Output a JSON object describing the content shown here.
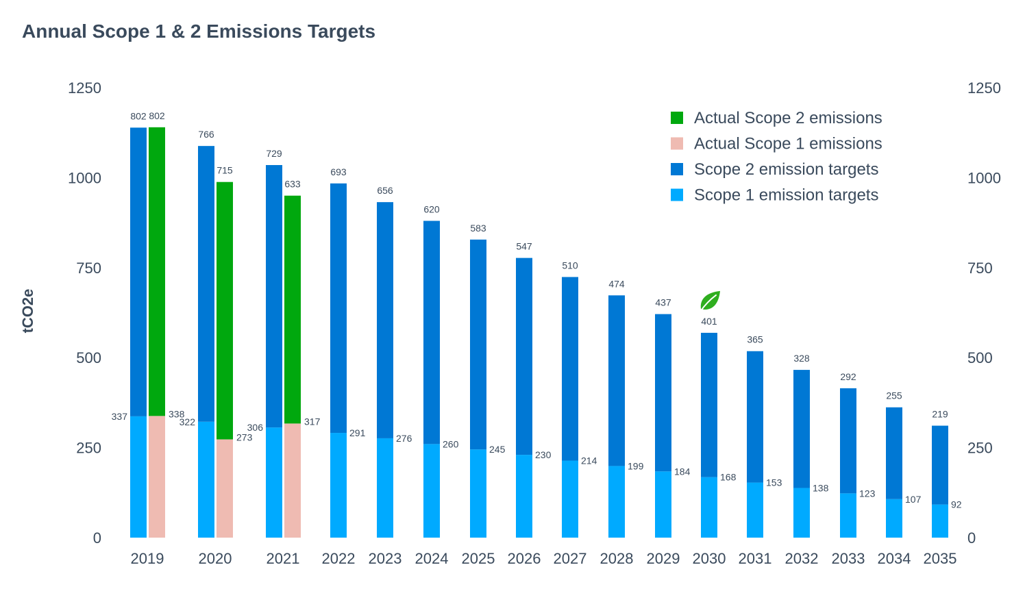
{
  "chart_data": {
    "type": "bar",
    "title": "Annual Scope 1 & 2 Emissions Targets",
    "ylabel": "tCO2e",
    "xlabel": "",
    "ylim": [
      0,
      1250
    ],
    "yticks": [
      "0",
      "250",
      "500",
      "750",
      "1000",
      "1250"
    ],
    "grid": false,
    "legend_position": "top-right",
    "categories": [
      "2019",
      "2020",
      "2021",
      "2022",
      "2023",
      "2024",
      "2025",
      "2026",
      "2027",
      "2028",
      "2029",
      "2030",
      "2031",
      "2032",
      "2033",
      "2034",
      "2035"
    ],
    "series": [
      {
        "name": "Scope 1 emission targets",
        "stack": "targets",
        "color": "#00aaff",
        "values": [
          337,
          322,
          306,
          291,
          276,
          260,
          245,
          230,
          214,
          199,
          184,
          168,
          153,
          138,
          123,
          107,
          92
        ]
      },
      {
        "name": "Scope 2 emission targets",
        "stack": "targets",
        "color": "#0078d4",
        "values": [
          802,
          766,
          729,
          693,
          656,
          620,
          583,
          547,
          510,
          474,
          437,
          401,
          365,
          328,
          292,
          255,
          219
        ]
      },
      {
        "name": "Actual Scope 1 emissions",
        "stack": "actual",
        "color": "#efbbb2",
        "values": [
          338,
          273,
          317,
          null,
          null,
          null,
          null,
          null,
          null,
          null,
          null,
          null,
          null,
          null,
          null,
          null,
          null
        ]
      },
      {
        "name": "Actual Scope 2 emissions",
        "stack": "actual",
        "color": "#00a80e",
        "values": [
          802,
          715,
          633,
          null,
          null,
          null,
          null,
          null,
          null,
          null,
          null,
          null,
          null,
          null,
          null,
          null,
          null
        ]
      }
    ],
    "legend": [
      "Actual Scope 2 emissions",
      "Actual Scope 1 emissions",
      "Scope 2 emission targets",
      "Scope 1 emission targets"
    ],
    "annotation": {
      "category": "2030",
      "icon": "leaf-icon",
      "color": "#2fae1f"
    }
  }
}
